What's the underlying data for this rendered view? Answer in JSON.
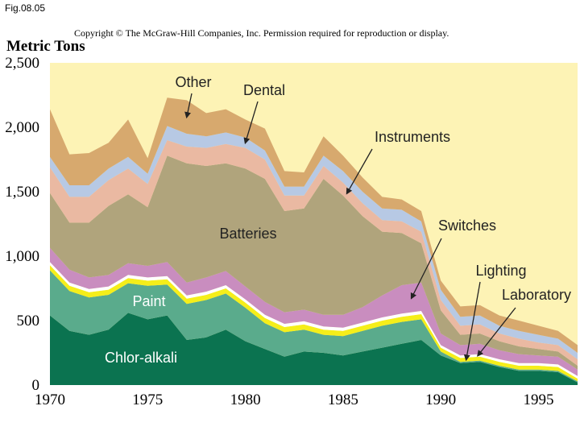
{
  "figure_label": "Fig.08.05",
  "copyright": "Copyright © The McGraw-Hill Companies, Inc. Permission required for reproduction or display.",
  "chart_data": {
    "type": "area",
    "stacked": true,
    "title": "",
    "ylabel": "Metric Tons",
    "xlabel": "",
    "xlim": [
      1970,
      1997
    ],
    "ylim": [
      0,
      2500
    ],
    "x_ticks": [
      "1970",
      "1975",
      "1980",
      "1985",
      "1990",
      "1995"
    ],
    "y_ticks": [
      "0",
      "500",
      "1,000",
      "1,500",
      "2,000",
      "2,500"
    ],
    "background_color": "#fdf3b5",
    "x": [
      1970,
      1971,
      1972,
      1973,
      1974,
      1975,
      1976,
      1977,
      1978,
      1979,
      1980,
      1981,
      1982,
      1983,
      1984,
      1985,
      1986,
      1987,
      1988,
      1989,
      1990,
      1991,
      1992,
      1993,
      1994,
      1995,
      1996,
      1997
    ],
    "series": [
      {
        "name": "Chlor-alkali",
        "color": "#0b7350",
        "text_color": "#ffffff",
        "values": [
          540,
          420,
          390,
          430,
          560,
          510,
          540,
          350,
          370,
          430,
          340,
          280,
          220,
          260,
          250,
          230,
          260,
          290,
          320,
          350,
          230,
          170,
          180,
          140,
          110,
          110,
          100,
          20
        ]
      },
      {
        "name": "Paint",
        "color": "#5aab8c",
        "text_color": "#ffffff",
        "values": [
          350,
          310,
          290,
          270,
          230,
          260,
          240,
          280,
          290,
          280,
          260,
          200,
          190,
          170,
          140,
          150,
          160,
          170,
          170,
          160,
          30,
          10,
          10,
          10,
          10,
          10,
          10,
          10
        ]
      },
      {
        "name": "Lighting",
        "color": "#f5ee1a",
        "values": [
          40,
          40,
          40,
          40,
          40,
          40,
          40,
          40,
          40,
          40,
          40,
          40,
          40,
          40,
          40,
          40,
          40,
          40,
          40,
          40,
          30,
          30,
          30,
          30,
          30,
          30,
          30,
          20
        ]
      },
      {
        "name": "Laboratory",
        "color": "#ffffff",
        "values": [
          25,
          25,
          25,
          25,
          25,
          25,
          25,
          25,
          25,
          25,
          25,
          25,
          25,
          25,
          25,
          25,
          25,
          25,
          25,
          25,
          20,
          20,
          20,
          20,
          20,
          20,
          20,
          20
        ]
      },
      {
        "name": "Switches",
        "color": "#c98dbf",
        "values": [
          110,
          100,
          90,
          90,
          90,
          90,
          110,
          100,
          110,
          110,
          100,
          100,
          90,
          90,
          90,
          100,
          120,
          170,
          220,
          220,
          90,
          80,
          80,
          70,
          70,
          60,
          60,
          50
        ]
      },
      {
        "name": "Batteries",
        "color": "#b0a47c",
        "values": [
          425,
          365,
          425,
          535,
          535,
          455,
          825,
          925,
          865,
          835,
          915,
          955,
          785,
          785,
          1055,
          925,
          705,
          495,
          405,
          305,
          180,
          80,
          80,
          70,
          60,
          50,
          40,
          30
        ]
      },
      {
        "name": "Instruments",
        "color": "#eab9a2",
        "values": [
          200,
          200,
          200,
          200,
          200,
          180,
          120,
          130,
          140,
          150,
          160,
          150,
          120,
          100,
          100,
          100,
          100,
          90,
          90,
          90,
          80,
          70,
          70,
          60,
          60,
          50,
          50,
          50
        ]
      },
      {
        "name": "Dental",
        "color": "#b7c9e4",
        "values": [
          80,
          90,
          90,
          90,
          90,
          80,
          110,
          100,
          90,
          90,
          80,
          70,
          70,
          70,
          80,
          90,
          90,
          90,
          90,
          80,
          80,
          70,
          70,
          60,
          60,
          60,
          50,
          50
        ]
      },
      {
        "name": "Other",
        "color": "#d7a96e",
        "values": [
          370,
          240,
          250,
          200,
          290,
          120,
          220,
          260,
          180,
          180,
          140,
          170,
          120,
          110,
          150,
          120,
          110,
          90,
          80,
          80,
          70,
          80,
          80,
          80,
          80,
          70,
          60,
          60
        ]
      }
    ],
    "annotations": [
      {
        "label": "Other",
        "series": "Other"
      },
      {
        "label": "Dental",
        "series": "Dental"
      },
      {
        "label": "Instruments",
        "series": "Instruments"
      },
      {
        "label": "Batteries",
        "series": "Batteries"
      },
      {
        "label": "Switches",
        "series": "Switches"
      },
      {
        "label": "Lighting",
        "series": "Lighting"
      },
      {
        "label": "Laboratory",
        "series": "Laboratory"
      },
      {
        "label": "Paint",
        "series": "Paint"
      },
      {
        "label": "Chlor-alkali",
        "series": "Chlor-alkali"
      }
    ]
  }
}
